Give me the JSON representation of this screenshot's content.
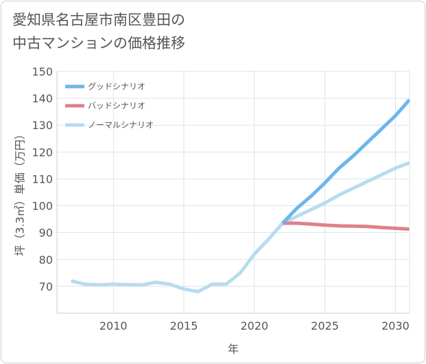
{
  "title_lines": [
    "愛知県名古屋市南区豊田の",
    "中古マンションの価格推移"
  ],
  "chart_data": {
    "type": "line",
    "title": "愛知県名古屋市南区豊田の中古マンションの価格推移",
    "xlabel": "年",
    "ylabel": "坪（3.3㎡）単価（万円）",
    "xlim": [
      2006,
      2031
    ],
    "ylim": [
      60,
      150
    ],
    "x_ticks": [
      2010,
      2015,
      2020,
      2025,
      2030
    ],
    "y_ticks": [
      70,
      80,
      90,
      100,
      110,
      120,
      130,
      140,
      150
    ],
    "x_tick_labels": [
      "2010",
      "2015",
      "2020",
      "2025",
      "2030"
    ],
    "y_tick_labels": [
      "70",
      "80",
      "90",
      "100",
      "110",
      "120",
      "130",
      "140",
      "150"
    ],
    "grid": true,
    "legend_position": "top-left",
    "series": [
      {
        "name": "グッドシナリオ",
        "color": "#6cb6ea",
        "x": [
          2022,
          2023,
          2024,
          2025,
          2026,
          2027,
          2028,
          2029,
          2030,
          2031
        ],
        "y": [
          93.5,
          99.0,
          103.5,
          108.5,
          114.0,
          118.5,
          123.5,
          128.5,
          133.5,
          139.5
        ]
      },
      {
        "name": "バッドシナリオ",
        "color": "#dd8288",
        "x": [
          2022,
          2023,
          2024,
          2025,
          2026,
          2027,
          2028,
          2029,
          2030,
          2031
        ],
        "y": [
          93.5,
          93.5,
          93.2,
          92.8,
          92.5,
          92.4,
          92.3,
          91.9,
          91.6,
          91.3
        ]
      },
      {
        "name": "ノーマルシナリオ",
        "color": "#b7dcee",
        "x": [
          2007,
          2008,
          2009,
          2010,
          2011,
          2012,
          2013,
          2014,
          2015,
          2016,
          2017,
          2018,
          2019,
          2020,
          2021,
          2022,
          2023,
          2024,
          2025,
          2026,
          2027,
          2028,
          2029,
          2030,
          2031
        ],
        "y": [
          72.0,
          70.8,
          70.5,
          70.8,
          70.6,
          70.5,
          71.5,
          70.8,
          69.0,
          68.0,
          70.8,
          70.8,
          75.0,
          82.0,
          87.5,
          93.5,
          96.0,
          98.5,
          101.0,
          104.0,
          106.5,
          109.0,
          111.5,
          114.0,
          116.0
        ]
      }
    ]
  }
}
